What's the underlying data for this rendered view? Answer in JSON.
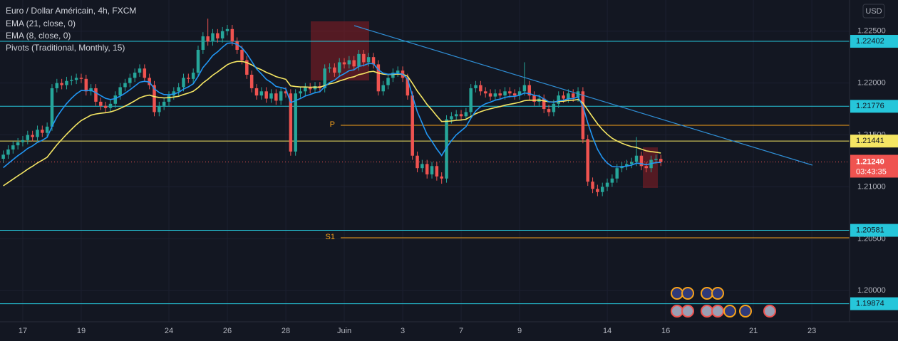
{
  "chart_data": {
    "type": "candlestick",
    "title": "Euro / Dollar Américain, 4h, FXCM",
    "pivots_label": "Pivots (Traditional, Monthly, 15)",
    "currency": "USD",
    "up_color": "#26a69a",
    "down_color": "#ef5350",
    "xlim": [
      -0.78,
      28.29
    ],
    "xticks": [
      {
        "value": 0,
        "label": "17"
      },
      {
        "value": 2,
        "label": "19"
      },
      {
        "value": 5,
        "label": "24"
      },
      {
        "value": 7,
        "label": "26"
      },
      {
        "value": 9,
        "label": "28"
      },
      {
        "value": 11,
        "label": "Juin"
      },
      {
        "value": 13,
        "label": "3"
      },
      {
        "value": 15,
        "label": "7"
      },
      {
        "value": 17,
        "label": "9"
      },
      {
        "value": 20,
        "label": "14"
      },
      {
        "value": 22,
        "label": "16"
      },
      {
        "value": 25,
        "label": "21"
      },
      {
        "value": 27,
        "label": "23"
      }
    ],
    "ylim": [
      1.197,
      1.228
    ],
    "yticks": [
      {
        "value": 1.2,
        "label": "1.20000"
      },
      {
        "value": 1.205,
        "label": "1.20500"
      },
      {
        "value": 1.21,
        "label": "1.21000"
      },
      {
        "value": 1.215,
        "label": "1.21500"
      },
      {
        "value": 1.22,
        "label": "1.22000"
      },
      {
        "value": 1.225,
        "label": "1.22500"
      }
    ],
    "grid": true,
    "open": [
      1.2127,
      1.2131,
      1.2136,
      1.214,
      1.2143,
      1.2145,
      1.215,
      1.2148,
      1.2155,
      1.2152,
      1.2158,
      1.2195,
      1.22,
      1.2198,
      1.2202,
      1.2203,
      1.2205,
      1.2204,
      1.2192,
      1.2195,
      1.2182,
      1.2178,
      1.2176,
      1.218,
      1.2188,
      1.2196,
      1.22,
      1.2205,
      1.221,
      1.2214,
      1.2205,
      1.2198,
      1.2172,
      1.2178,
      1.2182,
      1.2188,
      1.2192,
      1.2196,
      1.2205,
      1.2204,
      1.221,
      1.2232,
      1.2245,
      1.224,
      1.2248,
      1.2243,
      1.225,
      1.2252,
      1.224,
      1.2232,
      1.2222,
      1.2208,
      1.2195,
      1.2188,
      1.2192,
      1.2185,
      1.219,
      1.2183,
      1.2192,
      1.219,
      1.2134,
      1.219,
      1.2192,
      1.2196,
      1.2194,
      1.2197,
      1.2195,
      1.2214,
      1.2215,
      1.221,
      1.222,
      1.2218,
      1.2222,
      1.2216,
      1.2228,
      1.222,
      1.2225,
      1.2218,
      1.2192,
      1.2198,
      1.2205,
      1.221,
      1.2212,
      1.2205,
      1.2188,
      1.213,
      1.2118,
      1.2122,
      1.2112,
      1.212,
      1.211,
      1.2108,
      1.2165,
      1.2168,
      1.217,
      1.2168,
      1.2172,
      1.2195,
      1.2198,
      1.2192,
      1.219,
      1.2187,
      1.219,
      1.2188,
      1.2192,
      1.219,
      1.2188,
      1.2192,
      1.2198,
      1.2188,
      1.2182,
      1.2185,
      1.2175,
      1.2172,
      1.218,
      1.2188,
      1.2185,
      1.219,
      1.2186,
      1.2192,
      1.2146,
      1.2105,
      1.2098,
      1.2095,
      1.21,
      1.2104,
      1.2108,
      1.2118,
      1.212,
      1.2122,
      1.2124,
      1.213,
      1.212,
      1.2118,
      1.2126,
      1.2127
    ],
    "high": [
      1.2135,
      1.214,
      1.2144,
      1.2147,
      1.2149,
      1.2154,
      1.2154,
      1.2159,
      1.2159,
      1.2162,
      1.2199,
      1.2204,
      1.2204,
      1.2206,
      1.2207,
      1.2209,
      1.2209,
      1.2208,
      1.2199,
      1.2199,
      1.2186,
      1.2182,
      1.2184,
      1.2192,
      1.22,
      1.2204,
      1.2209,
      1.2214,
      1.2218,
      1.2218,
      1.2209,
      1.2202,
      1.2182,
      1.2186,
      1.2192,
      1.2196,
      1.22,
      1.2209,
      1.2209,
      1.2214,
      1.2236,
      1.2249,
      1.2262,
      1.2252,
      1.2252,
      1.2254,
      1.2256,
      1.2256,
      1.2244,
      1.2236,
      1.2226,
      1.2212,
      1.2199,
      1.2196,
      1.2196,
      1.2194,
      1.2194,
      1.2196,
      1.2196,
      1.2194,
      1.2194,
      1.2196,
      1.22,
      1.22,
      1.2201,
      1.2201,
      1.2218,
      1.2219,
      1.2219,
      1.2224,
      1.2224,
      1.2226,
      1.2226,
      1.2232,
      1.2232,
      1.2229,
      1.2229,
      1.2222,
      1.2202,
      1.2209,
      1.2214,
      1.2216,
      1.2216,
      1.2209,
      1.2192,
      1.2134,
      1.2126,
      1.2126,
      1.2124,
      1.2124,
      1.2114,
      1.2169,
      1.2172,
      1.2174,
      1.2174,
      1.2176,
      1.2199,
      1.2202,
      1.2202,
      1.2196,
      1.2194,
      1.2194,
      1.2194,
      1.2196,
      1.2196,
      1.2194,
      1.2196,
      1.222,
      1.2202,
      1.2192,
      1.2189,
      1.2189,
      1.2179,
      1.2184,
      1.2192,
      1.2192,
      1.2194,
      1.2194,
      1.2196,
      1.2196,
      1.215,
      1.2109,
      1.2102,
      1.2104,
      1.2108,
      1.2112,
      1.2122,
      1.2124,
      1.2126,
      1.2128,
      1.2148,
      1.2134,
      1.2124,
      1.213,
      1.2131,
      1.2131
    ],
    "low": [
      1.2123,
      1.2127,
      1.2132,
      1.2136,
      1.2139,
      1.2141,
      1.2144,
      1.2144,
      1.2148,
      1.2148,
      1.2154,
      1.2191,
      1.2194,
      1.2194,
      1.2198,
      1.2199,
      1.22,
      1.2188,
      1.2188,
      1.2178,
      1.2174,
      1.2172,
      1.2172,
      1.2176,
      1.2184,
      1.2192,
      1.2196,
      1.2201,
      1.2206,
      1.2201,
      1.2194,
      1.2168,
      1.2168,
      1.2174,
      1.2178,
      1.2184,
      1.2188,
      1.2192,
      1.22,
      1.22,
      1.2206,
      1.2228,
      1.2236,
      1.2236,
      1.2239,
      1.2239,
      1.2246,
      1.2236,
      1.2228,
      1.2218,
      1.2204,
      1.2191,
      1.2184,
      1.2184,
      1.2181,
      1.2181,
      1.2179,
      1.2179,
      1.2186,
      1.213,
      1.213,
      1.2186,
      1.2188,
      1.219,
      1.219,
      1.2191,
      1.2191,
      1.221,
      1.2206,
      1.2206,
      1.2214,
      1.2214,
      1.2212,
      1.2212,
      1.2216,
      1.2216,
      1.2214,
      1.2188,
      1.2188,
      1.2194,
      1.2201,
      1.2206,
      1.2201,
      1.2184,
      1.2126,
      1.2114,
      1.2114,
      1.2108,
      1.2108,
      1.2106,
      1.2103,
      1.2104,
      1.2161,
      1.2164,
      1.2164,
      1.2164,
      1.2168,
      1.2191,
      1.2188,
      1.2186,
      1.2183,
      1.2183,
      1.2184,
      1.2184,
      1.2186,
      1.2184,
      1.2184,
      1.2188,
      1.2184,
      1.2178,
      1.2178,
      1.2171,
      1.2168,
      1.2168,
      1.2176,
      1.2181,
      1.2181,
      1.2182,
      1.2182,
      1.2142,
      1.2101,
      1.2094,
      1.2091,
      1.2091,
      1.2096,
      1.21,
      1.2104,
      1.2114,
      1.2116,
      1.2118,
      1.212,
      1.2116,
      1.2114,
      1.2114,
      1.2122,
      1.212
    ],
    "close": [
      1.2131,
      1.2136,
      1.214,
      1.2143,
      1.2145,
      1.215,
      1.2148,
      1.2155,
      1.2152,
      1.2158,
      1.2195,
      1.22,
      1.2198,
      1.2202,
      1.2203,
      1.2205,
      1.2204,
      1.2192,
      1.2195,
      1.2182,
      1.2178,
      1.2176,
      1.218,
      1.2188,
      1.2196,
      1.22,
      1.2205,
      1.221,
      1.2214,
      1.2205,
      1.2198,
      1.2172,
      1.2178,
      1.2182,
      1.2188,
      1.2192,
      1.2196,
      1.2205,
      1.2204,
      1.221,
      1.2232,
      1.2245,
      1.224,
      1.2248,
      1.2243,
      1.225,
      1.2252,
      1.224,
      1.2232,
      1.2222,
      1.2208,
      1.2195,
      1.2188,
      1.2192,
      1.2185,
      1.219,
      1.2183,
      1.2192,
      1.219,
      1.2134,
      1.219,
      1.2192,
      1.2196,
      1.2194,
      1.2197,
      1.2195,
      1.2214,
      1.2215,
      1.221,
      1.222,
      1.2218,
      1.2222,
      1.2216,
      1.2228,
      1.222,
      1.2225,
      1.2218,
      1.2192,
      1.2198,
      1.2205,
      1.221,
      1.2212,
      1.2205,
      1.2188,
      1.213,
      1.2118,
      1.2122,
      1.2112,
      1.212,
      1.211,
      1.2108,
      1.2165,
      1.2168,
      1.217,
      1.2168,
      1.2172,
      1.2195,
      1.2198,
      1.2192,
      1.219,
      1.2187,
      1.219,
      1.2188,
      1.2192,
      1.219,
      1.2188,
      1.2192,
      1.2198,
      1.2188,
      1.2182,
      1.2185,
      1.2175,
      1.2172,
      1.218,
      1.2188,
      1.2185,
      1.219,
      1.2186,
      1.2192,
      1.2146,
      1.2105,
      1.2098,
      1.2095,
      1.21,
      1.2104,
      1.2108,
      1.2118,
      1.212,
      1.2122,
      1.2124,
      1.213,
      1.212,
      1.2118,
      1.2126,
      1.2127,
      1.2124
    ],
    "series": [
      {
        "name": "EMA (21, close, 0)",
        "color": "#f5e663",
        "values": [
          1.2101,
          1.21042,
          1.21074,
          1.21106,
          1.21137,
          1.2117,
          1.21198,
          1.2123,
          1.21256,
          1.21285,
          1.21345,
          1.21404,
          1.21456,
          1.21507,
          1.21554,
          1.21599,
          1.21639,
          1.21664,
          1.2169,
          1.21702,
          1.21709,
          1.21714,
          1.21722,
          1.21736,
          1.21756,
          1.21778,
          1.21802,
          1.21829,
          1.21857,
          1.21874,
          1.21884,
          1.21869,
          1.21861,
          1.21857,
          1.21859,
          1.21865,
          1.21873,
          1.21889,
          1.21903,
          1.21921,
          1.21956,
          1.22001,
          1.22036,
          1.22076,
          1.22107,
          1.22143,
          1.22177,
          1.22197,
          1.22208,
          1.22209,
          1.22197,
          1.22175,
          1.22148,
          1.22128,
          1.22103,
          1.22085,
          1.22062,
          1.22049,
          1.22036,
          1.21973,
          1.21966,
          1.21962,
          1.21962,
          1.2196,
          1.21961,
          1.2196,
          1.21976,
          1.21992,
          1.22002,
          1.2202,
          1.22034,
          1.22051,
          1.22061,
          1.22081,
          1.22091,
          1.22107,
          1.22113,
          1.22096,
          1.22086,
          1.22082,
          1.22084,
          1.22087,
          1.22084,
          1.22066,
          1.21997,
          1.21923,
          1.2186,
          1.21794,
          1.21741,
          1.21683,
          1.21629,
          1.21631,
          1.21635,
          1.21641,
          1.21644,
          1.21651,
          1.21678,
          1.21705,
          1.21724,
          1.2174,
          1.21752,
          1.21764,
          1.21773,
          1.21786,
          1.21796,
          1.21804,
          1.21815,
          1.2183,
          1.21835,
          1.21834,
          1.21836,
          1.21828,
          1.21819,
          1.21817,
          1.21823,
          1.21825,
          1.21832,
          1.21834,
          1.21842,
          1.21808,
          1.2174,
          1.21672,
          1.21607,
          1.21552,
          1.21506,
          1.21468,
          1.21442,
          1.2142,
          1.21402,
          1.21387,
          1.21379,
          1.21363,
          1.21347,
          1.2134,
          1.21334,
          1.21326
        ]
      },
      {
        "name": "EMA (8, close, 0)",
        "color": "#2196f3",
        "values": [
          1.21185,
          1.21224,
          1.21263,
          1.213,
          1.21333,
          1.2137,
          1.21394,
          1.21428,
          1.21448,
          1.21477,
          1.21581,
          1.21673,
          1.21741,
          1.21803,
          1.21853,
          1.21896,
          1.21928,
          1.21926,
          1.21931,
          1.21907,
          1.21879,
          1.21853,
          1.21841,
          1.2185,
          1.21874,
          1.21902,
          1.21935,
          1.21971,
          1.22008,
          1.22017,
          1.22009,
          1.21945,
          1.21909,
          1.21889,
          1.21887,
          1.21894,
          1.2191,
          1.21941,
          1.21963,
          1.21993,
          1.22065,
          1.2215,
          1.22205,
          1.22265,
          1.22301,
          1.22345,
          1.22383,
          1.22387,
          1.22372,
          1.22339,
          1.22282,
          1.22209,
          1.22136,
          1.22088,
          1.22036,
          1.22006,
          1.21967,
          1.21957,
          1.21944,
          1.21811,
          1.21831,
          1.21851,
          1.21875,
          1.21889,
          1.21907,
          1.21916,
          1.21965,
          1.22006,
          1.22027,
          1.22065,
          1.2209,
          1.22119,
          1.22128,
          1.22161,
          1.2217,
          1.22188,
          1.22186,
          1.22127,
          1.22095,
          1.22085,
          1.22088,
          1.22095,
          1.22085,
          1.2204,
          1.21877,
          1.21724,
          1.21613,
          1.21505,
          1.21438,
          1.21364,
          1.21302,
          1.21379,
          1.21445,
          1.21501,
          1.2154,
          1.2158,
          1.21661,
          1.21731,
          1.21773,
          1.21801,
          1.21816,
          1.21835,
          1.21845,
          1.21862,
          1.2187,
          1.21872,
          1.21883,
          1.21904,
          1.21899,
          1.21882,
          1.21875,
          1.21847,
          1.21819,
          1.21815,
          1.21829,
          1.21834,
          1.21849,
          1.21851,
          1.21866,
          1.21777,
          1.21617,
          1.21477,
          1.21361,
          1.21282,
          1.21229,
          1.21196,
          1.21192,
          1.21194,
          1.212,
          1.21209,
          1.21229,
          1.21223,
          1.21213,
          1.21223,
          1.21234,
          1.21235
        ]
      }
    ],
    "levels": [
      {
        "value": 1.22402,
        "color": "#26c6da"
      },
      {
        "value": 1.21776,
        "color": "#26c6da"
      },
      {
        "value": 1.21441,
        "color": "#f5e663"
      },
      {
        "value": 1.20581,
        "color": "#26c6da"
      },
      {
        "value": 1.19874,
        "color": "#26c6da"
      }
    ],
    "pivots": [
      {
        "label": "P",
        "value": 1.21593
      },
      {
        "label": "S1",
        "value": 1.20509
      }
    ],
    "pivot_color": "#f7a21b",
    "price": {
      "value": 1.2124,
      "label": "1.21240"
    },
    "countdown": "03:43:35"
  }
}
